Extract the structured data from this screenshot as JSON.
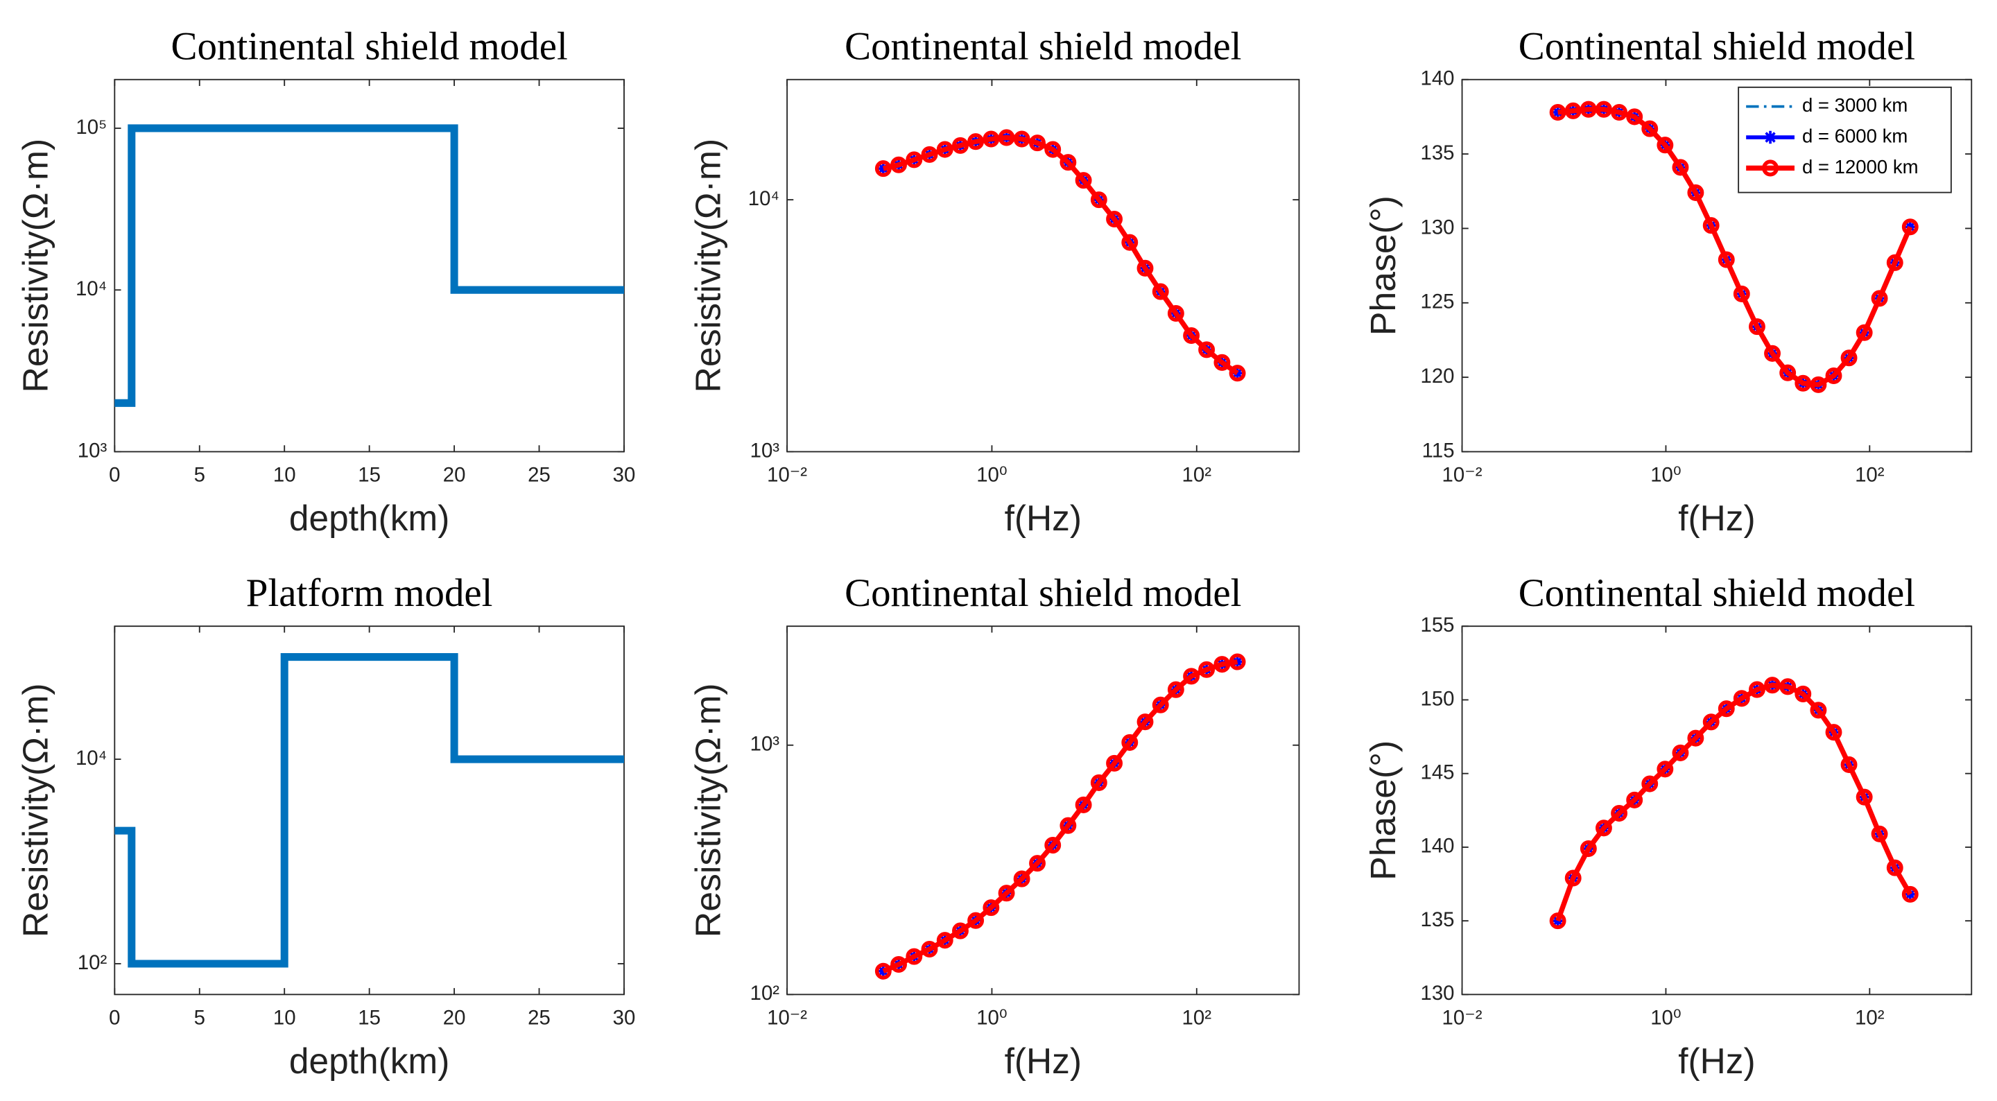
{
  "chart_data": [
    {
      "type": "line",
      "title": "Continental shield model",
      "xlabel": "depth(km)",
      "ylabel": "Resistivity(Ω·m)",
      "x": [
        0,
        1,
        1,
        20,
        20,
        30
      ],
      "series": [
        {
          "color": "#0072bd",
          "values": [
            2000,
            2000,
            100000,
            100000,
            10000,
            10000
          ]
        }
      ],
      "xlim": [
        0,
        30
      ],
      "xticks": [
        0,
        5,
        10,
        15,
        20,
        25,
        30
      ],
      "ylim": [
        1000,
        200000
      ],
      "ylog": true,
      "yticks": [
        {
          "value": 1000,
          "label": "10³"
        },
        {
          "value": 10000,
          "label": "10⁴"
        },
        {
          "value": 100000,
          "label": "10⁵"
        }
      ]
    },
    {
      "type": "line",
      "title": "Continental shield model",
      "xlabel": "f(Hz)",
      "ylabel": "Resistivity(Ω·m)",
      "x": [
        0.087,
        0.123,
        0.174,
        0.246,
        0.348,
        0.492,
        0.695,
        0.983,
        1.39,
        1.96,
        2.78,
        3.93,
        5.55,
        7.85,
        11.1,
        15.7,
        22.2,
        31.4,
        44.4,
        62.7,
        88.7,
        125,
        177,
        250
      ],
      "xlim": [
        0.01,
        1000
      ],
      "xlog": true,
      "xticks": [
        {
          "value": 0.01,
          "label": "10⁻²"
        },
        {
          "value": 1,
          "label": "10⁰"
        },
        {
          "value": 100,
          "label": "10²"
        }
      ],
      "ylim": [
        1000,
        30000
      ],
      "ylog": true,
      "yticks": [
        {
          "value": 1000,
          "label": "10³"
        },
        {
          "value": 10000,
          "label": "10⁴"
        }
      ],
      "series": [
        {
          "color": "#0072bd",
          "style": "dashdot",
          "values": [
            13300,
            13760,
            14420,
            15120,
            15840,
            16420,
            17020,
            17420,
            17650,
            17420,
            16810,
            15840,
            14080,
            11940,
            10000,
            8380,
            6770,
            5350,
            4320,
            3540,
            2890,
            2540,
            2260,
            2050
          ]
        },
        {
          "color": "#0000ff",
          "marker": "asterisk",
          "values": [
            13300,
            13760,
            14420,
            15120,
            15840,
            16420,
            17020,
            17420,
            17650,
            17420,
            16810,
            15840,
            14080,
            11940,
            10000,
            8380,
            6770,
            5350,
            4320,
            3540,
            2890,
            2540,
            2260,
            2050
          ]
        },
        {
          "color": "#ff0000",
          "marker": "circle",
          "values": [
            13300,
            13760,
            14420,
            15120,
            15840,
            16420,
            17020,
            17420,
            17650,
            17420,
            16810,
            15840,
            14080,
            11940,
            10000,
            8380,
            6770,
            5350,
            4320,
            3540,
            2890,
            2540,
            2260,
            2050
          ]
        }
      ]
    },
    {
      "type": "line",
      "title": "Continental shield model",
      "xlabel": "f(Hz)",
      "ylabel": "Phase(°)",
      "x": [
        0.087,
        0.123,
        0.174,
        0.246,
        0.348,
        0.492,
        0.695,
        0.983,
        1.39,
        1.96,
        2.78,
        3.93,
        5.55,
        7.85,
        11.1,
        15.7,
        22.2,
        31.4,
        44.4,
        62.7,
        88.7,
        125,
        177,
        250
      ],
      "xlim": [
        0.01,
        1000
      ],
      "xlog": true,
      "xticks": [
        {
          "value": 0.01,
          "label": "10⁻²"
        },
        {
          "value": 1,
          "label": "10⁰"
        },
        {
          "value": 100,
          "label": "10²"
        }
      ],
      "ylim": [
        115,
        140
      ],
      "yticks": [
        115,
        120,
        125,
        130,
        135,
        140
      ],
      "legend": "upper right",
      "series": [
        {
          "name": "d = 3000 km",
          "color": "#0072bd",
          "style": "dashdot",
          "values": [
            137.8,
            137.9,
            138.0,
            138.0,
            137.8,
            137.5,
            136.7,
            135.6,
            134.1,
            132.4,
            130.2,
            127.9,
            125.6,
            123.4,
            121.6,
            120.3,
            119.6,
            119.5,
            120.1,
            121.3,
            123.0,
            125.3,
            127.7,
            130.1
          ]
        },
        {
          "name": "d = 6000 km",
          "color": "#0000ff",
          "marker": "asterisk",
          "values": [
            137.8,
            137.9,
            138.0,
            138.0,
            137.8,
            137.5,
            136.7,
            135.6,
            134.1,
            132.4,
            130.2,
            127.9,
            125.6,
            123.4,
            121.6,
            120.3,
            119.6,
            119.5,
            120.1,
            121.3,
            123.0,
            125.3,
            127.7,
            130.1
          ]
        },
        {
          "name": "d = 12000 km",
          "color": "#ff0000",
          "marker": "circle",
          "values": [
            137.8,
            137.9,
            138.0,
            138.0,
            137.8,
            137.5,
            136.7,
            135.6,
            134.1,
            132.4,
            130.2,
            127.9,
            125.6,
            123.4,
            121.6,
            120.3,
            119.6,
            119.5,
            120.1,
            121.3,
            123.0,
            125.3,
            127.7,
            130.1
          ]
        }
      ]
    },
    {
      "type": "line",
      "title": "Platform model",
      "xlabel": "depth(km)",
      "ylabel": "Resistivity(Ω·m)",
      "x": [
        0,
        1,
        1,
        10,
        10,
        20,
        20,
        30
      ],
      "series": [
        {
          "color": "#0072bd",
          "values": [
            2000,
            2000,
            100,
            100,
            100000,
            100000,
            10000,
            10000
          ]
        }
      ],
      "xlim": [
        0,
        30
      ],
      "xticks": [
        0,
        5,
        10,
        15,
        20,
        25,
        30
      ],
      "ylim": [
        50,
        200000
      ],
      "ylog": true,
      "yticks": [
        {
          "value": 100,
          "label": "10²"
        },
        {
          "value": 10000,
          "label": "10⁴"
        }
      ]
    },
    {
      "type": "line",
      "title": "Continental shield model",
      "xlabel": "f(Hz)",
      "ylabel": "Resistivity(Ω·m)",
      "x": [
        0.087,
        0.123,
        0.174,
        0.246,
        0.348,
        0.492,
        0.695,
        0.983,
        1.39,
        1.96,
        2.78,
        3.93,
        5.55,
        7.85,
        11.1,
        15.7,
        22.2,
        31.4,
        44.4,
        62.7,
        88.7,
        125,
        177,
        250
      ],
      "xlim": [
        0.01,
        1000
      ],
      "xlog": true,
      "xticks": [
        {
          "value": 0.01,
          "label": "10⁻²"
        },
        {
          "value": 1,
          "label": "10⁰"
        },
        {
          "value": 100,
          "label": "10²"
        }
      ],
      "ylim": [
        100,
        3000
      ],
      "ylog": true,
      "yticks": [
        {
          "value": 100,
          "label": "10²"
        },
        {
          "value": 1000,
          "label": "10³"
        }
      ],
      "series": [
        {
          "color": "#0072bd",
          "style": "dashdot",
          "values": [
            124,
            132,
            142,
            152,
            165,
            180,
            198,
            223,
            255,
            291,
            336,
            397,
            476,
            576,
            707,
            846,
            1025,
            1240,
            1450,
            1670,
            1890,
            2010,
            2110,
            2160
          ]
        },
        {
          "color": "#0000ff",
          "marker": "asterisk",
          "values": [
            124,
            132,
            142,
            152,
            165,
            180,
            198,
            223,
            255,
            291,
            336,
            397,
            476,
            576,
            707,
            846,
            1025,
            1240,
            1450,
            1670,
            1890,
            2010,
            2110,
            2160
          ]
        },
        {
          "color": "#ff0000",
          "marker": "circle",
          "values": [
            124,
            132,
            142,
            152,
            165,
            180,
            198,
            223,
            255,
            291,
            336,
            397,
            476,
            576,
            707,
            846,
            1025,
            1240,
            1450,
            1670,
            1890,
            2010,
            2110,
            2160
          ]
        }
      ]
    },
    {
      "type": "line",
      "title": "Continental shield model",
      "xlabel": "f(Hz)",
      "ylabel": "Phase(°)",
      "x": [
        0.087,
        0.123,
        0.174,
        0.246,
        0.348,
        0.492,
        0.695,
        0.983,
        1.39,
        1.96,
        2.78,
        3.93,
        5.55,
        7.85,
        11.1,
        15.7,
        22.2,
        31.4,
        44.4,
        62.7,
        88.7,
        125,
        177,
        250
      ],
      "xlim": [
        0.01,
        1000
      ],
      "xlog": true,
      "xticks": [
        {
          "value": 0.01,
          "label": "10⁻²"
        },
        {
          "value": 1,
          "label": "10⁰"
        },
        {
          "value": 100,
          "label": "10²"
        }
      ],
      "ylim": [
        130,
        155
      ],
      "yticks": [
        130,
        135,
        140,
        145,
        150,
        155
      ],
      "series": [
        {
          "color": "#0072bd",
          "style": "dashdot",
          "values": [
            135.0,
            137.9,
            139.9,
            141.3,
            142.3,
            143.2,
            144.3,
            145.3,
            146.4,
            147.4,
            148.5,
            149.4,
            150.1,
            150.7,
            151.0,
            150.9,
            150.4,
            149.3,
            147.8,
            145.6,
            143.4,
            140.9,
            138.6,
            136.8
          ]
        },
        {
          "color": "#0000ff",
          "marker": "asterisk",
          "values": [
            135.0,
            137.9,
            139.9,
            141.3,
            142.3,
            143.2,
            144.3,
            145.3,
            146.4,
            147.4,
            148.5,
            149.4,
            150.1,
            150.7,
            151.0,
            150.9,
            150.4,
            149.3,
            147.8,
            145.6,
            143.4,
            140.9,
            138.6,
            136.8
          ]
        },
        {
          "color": "#ff0000",
          "marker": "circle",
          "values": [
            135.0,
            137.9,
            139.9,
            141.3,
            142.3,
            143.2,
            144.3,
            145.3,
            146.4,
            147.4,
            148.5,
            149.4,
            150.1,
            150.7,
            151.0,
            150.9,
            150.4,
            149.3,
            147.8,
            145.6,
            143.4,
            140.9,
            138.6,
            136.8
          ]
        }
      ]
    }
  ]
}
